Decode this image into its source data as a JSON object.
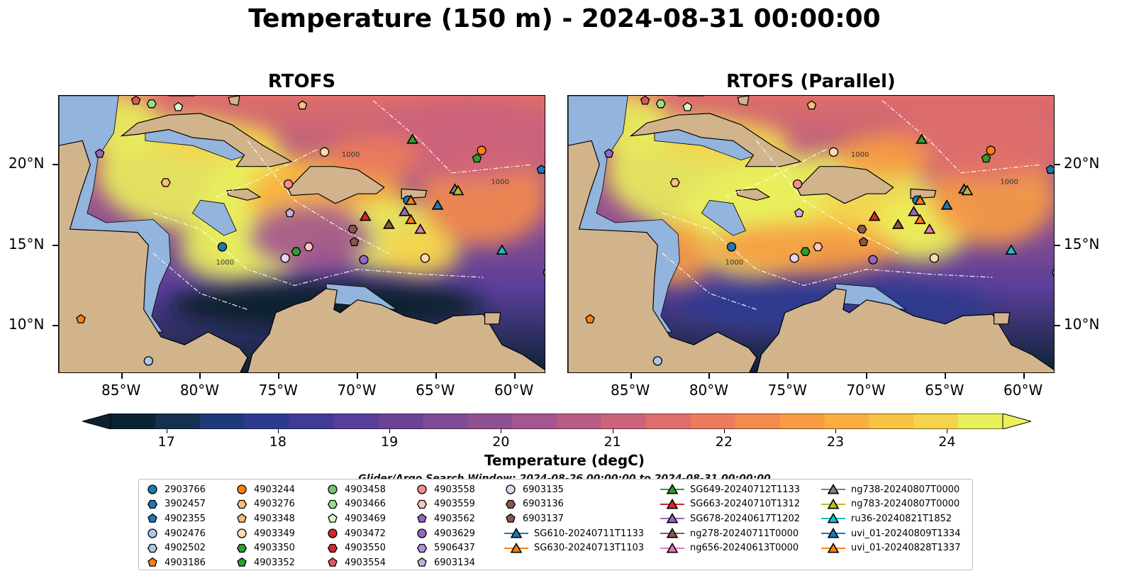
{
  "title": "Temperature (150 m) - 2024-08-31 00:00:00",
  "panels": [
    {
      "title": "RTOFS"
    },
    {
      "title": "RTOFS (Parallel)"
    }
  ],
  "axes": {
    "lon_ticks": [
      "85°W",
      "80°W",
      "75°W",
      "70°W",
      "65°W",
      "60°W"
    ],
    "lat_ticks": [
      "20°N",
      "15°N",
      "10°N"
    ]
  },
  "map_labels": {
    "contour_labels": [
      "1000",
      "1000",
      "1000"
    ]
  },
  "colorbar": {
    "label": "Temperature (degC)",
    "ticks": [
      "17",
      "18",
      "19",
      "20",
      "21",
      "22",
      "23",
      "24"
    ],
    "colors": [
      "#0b2233",
      "#16304f",
      "#1f3a78",
      "#2d3b8f",
      "#3f3b96",
      "#573e98",
      "#6a4396",
      "#7d4a95",
      "#8f5092",
      "#a3568f",
      "#b85c86",
      "#cc637b",
      "#df6d6b",
      "#ec7b5b",
      "#f38b4d",
      "#f79c42",
      "#f9ae3e",
      "#f8c242",
      "#f5d44b",
      "#e9f05c"
    ],
    "range": [
      16.5,
      24.5
    ]
  },
  "search_window": "Glider/Argo Search Window: 2024-08-26 00:00:00 to 2024-08-31 00:00:00",
  "legend": {
    "columns": [
      [
        {
          "label": "2903766",
          "marker": "circle",
          "color": "#1f77b4"
        },
        {
          "label": "3902457",
          "marker": "hexagon",
          "color": "#1f77b4"
        },
        {
          "label": "4902355",
          "marker": "pentagon",
          "color": "#1f77b4"
        },
        {
          "label": "4902476",
          "marker": "circle",
          "color": "#aec7e8"
        },
        {
          "label": "4902502",
          "marker": "hexagon",
          "color": "#aec7e8"
        },
        {
          "label": "4903186",
          "marker": "pentagon",
          "color": "#ff7f0e"
        }
      ],
      [
        {
          "label": "4903244",
          "marker": "circle",
          "color": "#ff7f0e"
        },
        {
          "label": "4903276",
          "marker": "hexagon",
          "color": "#ffbb78"
        },
        {
          "label": "4903348",
          "marker": "pentagon",
          "color": "#ffbb78"
        },
        {
          "label": "4903349",
          "marker": "circle",
          "color": "#ffdbb0"
        },
        {
          "label": "4903350",
          "marker": "hexagon",
          "color": "#2ca02c"
        },
        {
          "label": "4903352",
          "marker": "pentagon",
          "color": "#2ca02c"
        }
      ],
      [
        {
          "label": "4903458",
          "marker": "circle",
          "color": "#74c476"
        },
        {
          "label": "4903466",
          "marker": "hexagon",
          "color": "#98df8a"
        },
        {
          "label": "4903469",
          "marker": "pentagon",
          "color": "#d9f7c9"
        },
        {
          "label": "4903472",
          "marker": "circle",
          "color": "#d62728"
        },
        {
          "label": "4903550",
          "marker": "hexagon",
          "color": "#d62728"
        },
        {
          "label": "4903554",
          "marker": "pentagon",
          "color": "#e15759"
        }
      ],
      [
        {
          "label": "4903558",
          "marker": "circle",
          "color": "#f28e8e"
        },
        {
          "label": "4903559",
          "marker": "hexagon",
          "color": "#fcc5c0"
        },
        {
          "label": "4903562",
          "marker": "pentagon",
          "color": "#9467bd"
        },
        {
          "label": "4903629",
          "marker": "circle",
          "color": "#9467bd"
        },
        {
          "label": "5906437",
          "marker": "hexagon",
          "color": "#b38ee0"
        },
        {
          "label": "6903134",
          "marker": "pentagon",
          "color": "#c5b0d5"
        }
      ],
      [
        {
          "label": "6903135",
          "marker": "circle",
          "color": "#e2d4f2"
        },
        {
          "label": "6903136",
          "marker": "hexagon",
          "color": "#8c564b"
        },
        {
          "label": "6903137",
          "marker": "pentagon",
          "color": "#8c564b"
        },
        {
          "label": "SG610-20240711T1133",
          "marker": "triangle",
          "color": "#1f77b4"
        },
        {
          "label": "SG630-20240713T1103",
          "marker": "triangle",
          "color": "#ff7f0e"
        }
      ],
      [
        {
          "label": "SG649-20240712T1133",
          "marker": "triangle",
          "color": "#2ca02c"
        },
        {
          "label": "SG663-20240710T1312",
          "marker": "triangle",
          "color": "#d62728"
        },
        {
          "label": "SG678-20240617T1202",
          "marker": "triangle",
          "color": "#9467bd"
        },
        {
          "label": "ng278-20240711T0000",
          "marker": "triangle",
          "color": "#8c564b"
        },
        {
          "label": "ng656-20240613T0000",
          "marker": "triangle",
          "color": "#e377c2"
        }
      ],
      [
        {
          "label": "ng738-20240807T0000",
          "marker": "triangle",
          "color": "#7f7f7f"
        },
        {
          "label": "ng783-20240807T0000",
          "marker": "triangle",
          "color": "#bcbd22"
        },
        {
          "label": "ru36-20240821T1852",
          "marker": "triangle",
          "color": "#17becf"
        },
        {
          "label": "uvi_01-20240809T1334",
          "marker": "triangle",
          "color": "#1f77b4"
        },
        {
          "label": "uvi_01-20240828T1337",
          "marker": "triangle",
          "color": "#ff7f0e"
        }
      ]
    ]
  },
  "markers_on_map": [
    {
      "lon": -78.6,
      "lat": 14.9,
      "marker": "circle",
      "color": "#1f77b4"
    },
    {
      "lon": -66.8,
      "lat": 17.8,
      "marker": "circle",
      "color": "#1f77b4"
    },
    {
      "lon": -58.3,
      "lat": 19.7,
      "marker": "pentagon",
      "color": "#1f77b4"
    },
    {
      "lon": -83.3,
      "lat": 7.8,
      "marker": "circle",
      "color": "#aec7e8"
    },
    {
      "lon": -87.6,
      "lat": 10.4,
      "marker": "pentagon",
      "color": "#ff7f0e"
    },
    {
      "lon": -62.1,
      "lat": 20.9,
      "marker": "circle",
      "color": "#ff7f0e"
    },
    {
      "lon": -82.2,
      "lat": 18.9,
      "marker": "hexagon",
      "color": "#ffbb78"
    },
    {
      "lon": -73.5,
      "lat": 23.7,
      "marker": "pentagon",
      "color": "#ffbb78"
    },
    {
      "lon": -72.1,
      "lat": 20.8,
      "marker": "circle",
      "color": "#ffdbb0"
    },
    {
      "lon": -65.7,
      "lat": 14.2,
      "marker": "circle",
      "color": "#ffdbb0"
    },
    {
      "lon": -73.9,
      "lat": 14.6,
      "marker": "hexagon",
      "color": "#2ca02c"
    },
    {
      "lon": -62.4,
      "lat": 20.4,
      "marker": "pentagon",
      "color": "#2ca02c"
    },
    {
      "lon": -57.9,
      "lat": 13.3,
      "marker": "circle",
      "color": "#74c476"
    },
    {
      "lon": -83.1,
      "lat": 23.8,
      "marker": "hexagon",
      "color": "#98df8a"
    },
    {
      "lon": -81.4,
      "lat": 23.6,
      "marker": "pentagon",
      "color": "#d9f7c9"
    },
    {
      "lon": -74.4,
      "lat": 18.8,
      "marker": "circle",
      "color": "#f28e8e"
    },
    {
      "lon": -84.1,
      "lat": 24.0,
      "marker": "pentagon",
      "color": "#e15759"
    },
    {
      "lon": -73.1,
      "lat": 14.9,
      "marker": "hexagon",
      "color": "#fcc5c0"
    },
    {
      "lon": -74.6,
      "lat": 14.2,
      "marker": "circle",
      "color": "#e2d4f2"
    },
    {
      "lon": -69.6,
      "lat": 14.1,
      "marker": "circle",
      "color": "#9467bd"
    },
    {
      "lon": -86.4,
      "lat": 20.7,
      "marker": "pentagon",
      "color": "#9467bd"
    },
    {
      "lon": -74.3,
      "lat": 17.0,
      "marker": "pentagon",
      "color": "#c5b0d5"
    },
    {
      "lon": -70.3,
      "lat": 16.0,
      "marker": "hexagon",
      "color": "#8c564b"
    },
    {
      "lon": -70.2,
      "lat": 15.2,
      "marker": "pentagon",
      "color": "#8c564b"
    },
    {
      "lon": -64.9,
      "lat": 17.5,
      "marker": "triangle",
      "color": "#1f77b4"
    },
    {
      "lon": -60.8,
      "lat": 14.7,
      "marker": "triangle",
      "color": "#17becf"
    },
    {
      "lon": -66.5,
      "lat": 21.6,
      "marker": "triangle",
      "color": "#2ca02c"
    },
    {
      "lon": -69.5,
      "lat": 16.8,
      "marker": "triangle",
      "color": "#d62728"
    },
    {
      "lon": -67.0,
      "lat": 17.1,
      "marker": "triangle",
      "color": "#9467bd"
    },
    {
      "lon": -68.0,
      "lat": 16.3,
      "marker": "triangle",
      "color": "#8c564b"
    },
    {
      "lon": -66.0,
      "lat": 16.0,
      "marker": "triangle",
      "color": "#e377c2"
    },
    {
      "lon": -63.8,
      "lat": 18.5,
      "marker": "triangle",
      "color": "#7f7f7f"
    },
    {
      "lon": -63.6,
      "lat": 18.4,
      "marker": "triangle",
      "color": "#bcbd22"
    },
    {
      "lon": -66.6,
      "lat": 17.8,
      "marker": "triangle",
      "color": "#ff7f0e"
    },
    {
      "lon": -66.6,
      "lat": 16.6,
      "marker": "triangle",
      "color": "#ff7f0e"
    }
  ],
  "map_extent": {
    "lon": [
      -89,
      -58
    ],
    "lat": [
      7,
      24.3
    ]
  }
}
